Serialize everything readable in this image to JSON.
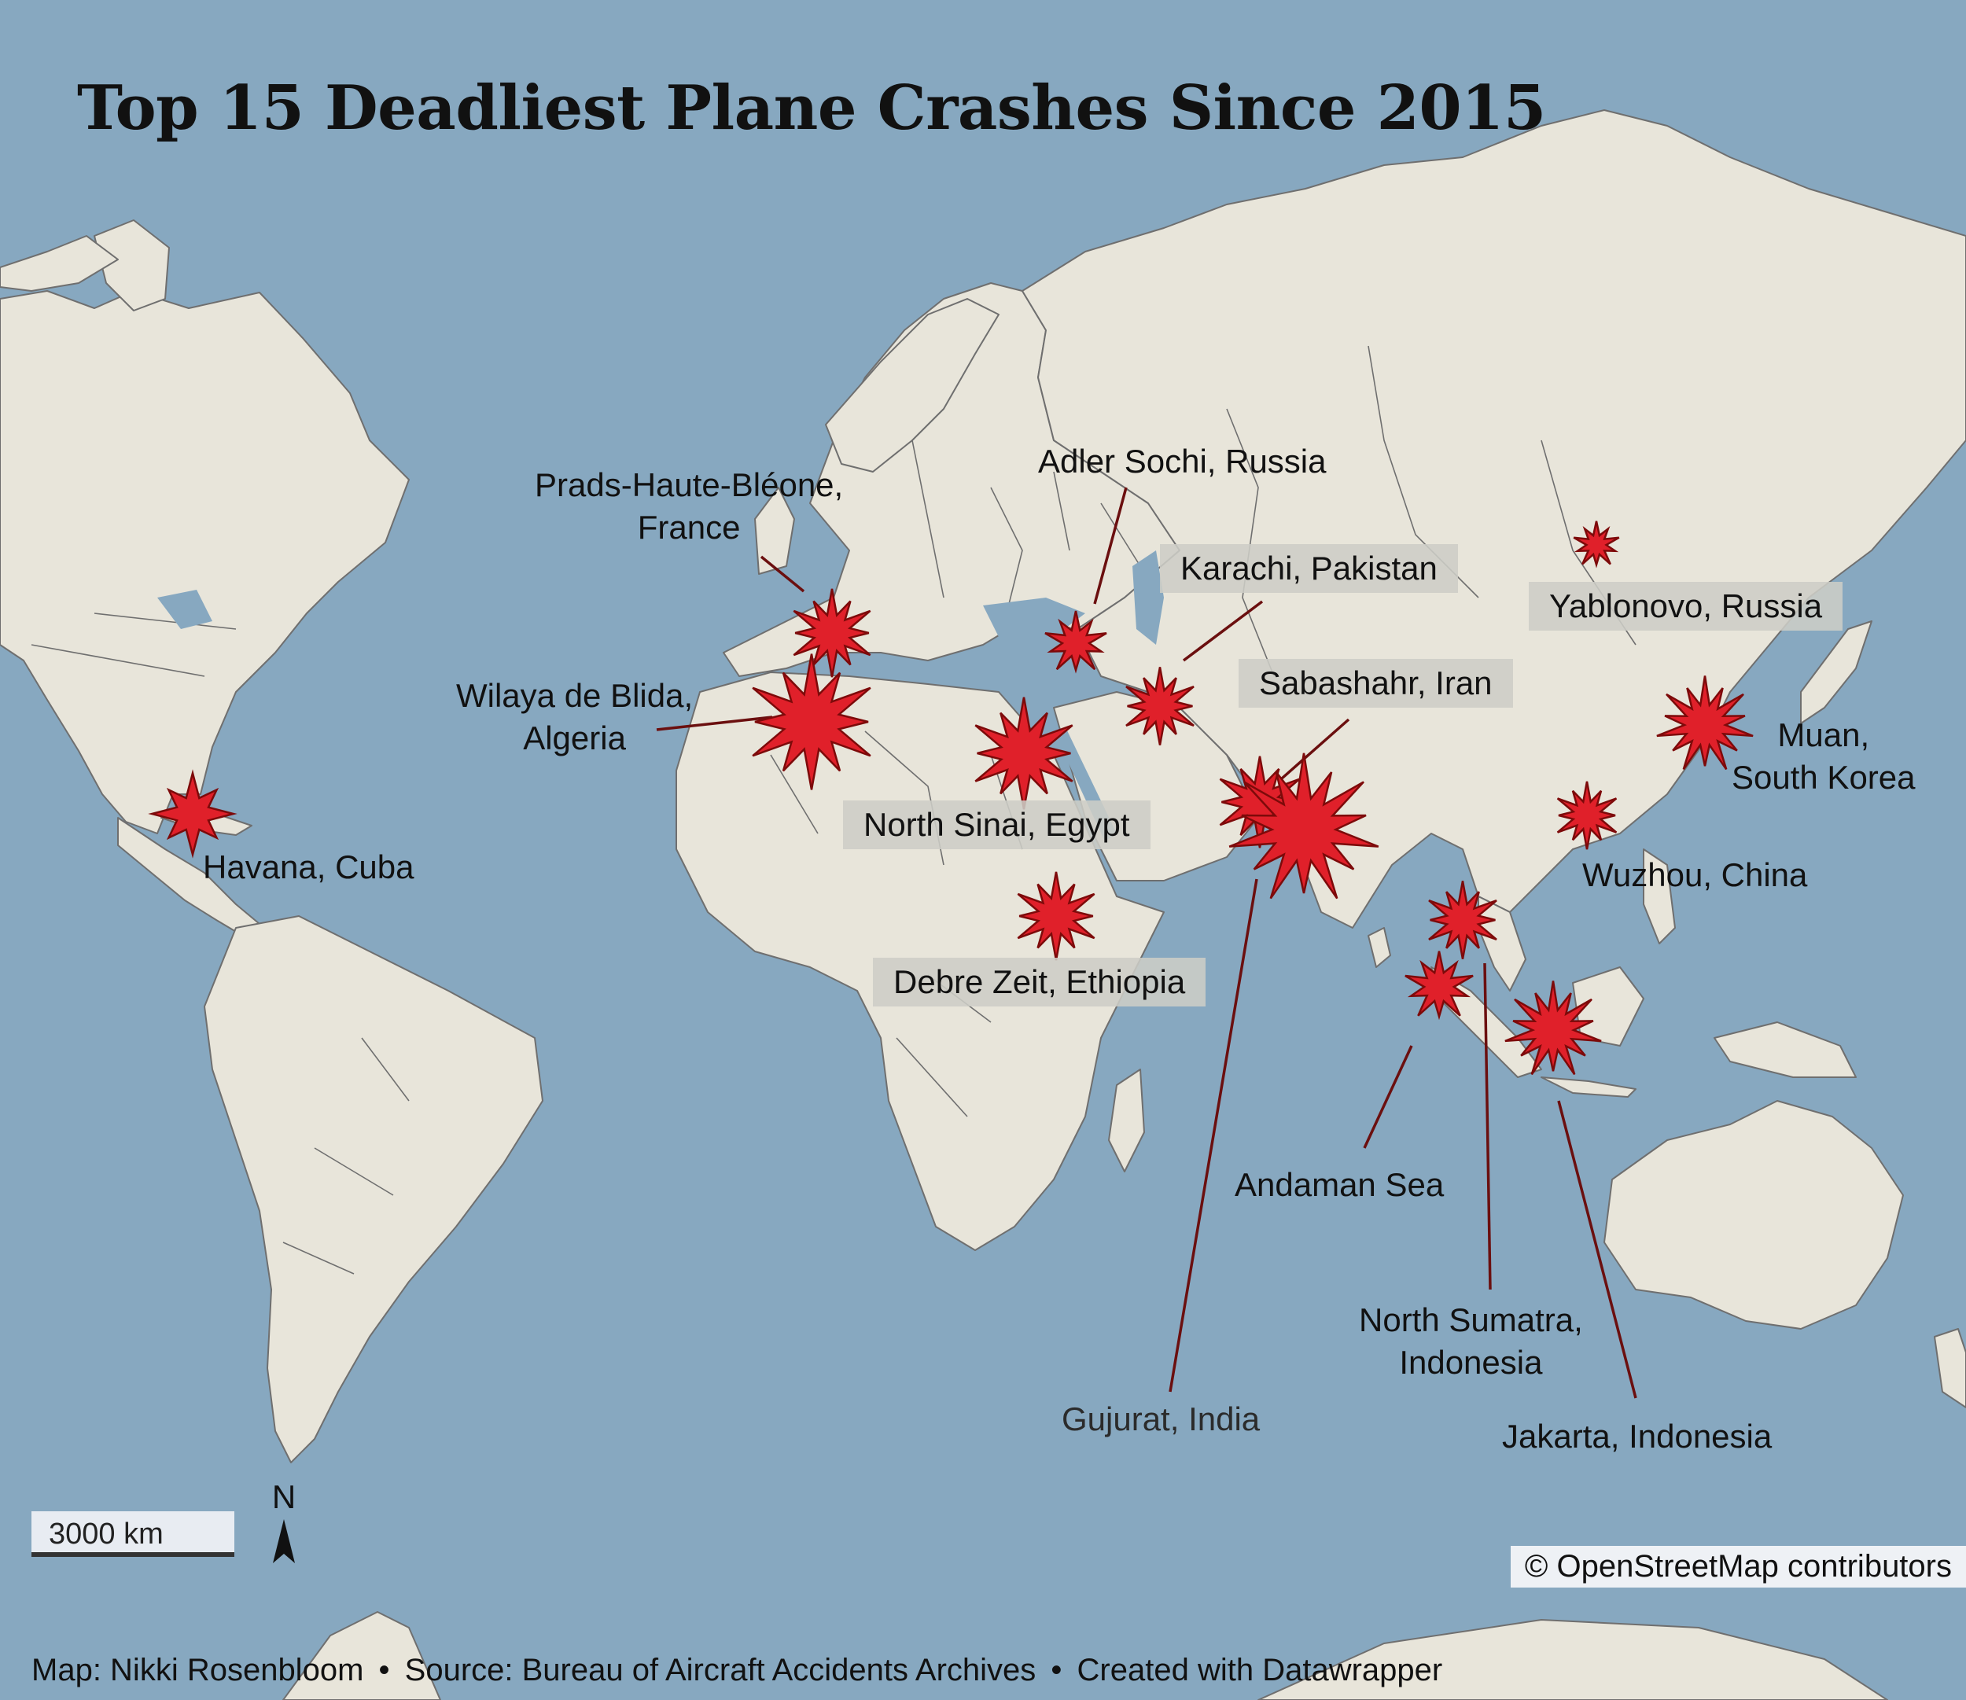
{
  "title": "Top 15 Deadliest Plane Crashes Since 2015",
  "colors": {
    "ocean": "#87a8c0",
    "land": "#e8e5da",
    "border": "#6f6f6f",
    "crash_marker": "#e0202a",
    "leader_line": "#6b0f0f",
    "label_box": "#cdcdc6"
  },
  "crash_sites": [
    {
      "id": "havana",
      "label": "Havana, Cuba"
    },
    {
      "id": "prads",
      "label": "Prads-Haute-Bléone,\nFrance"
    },
    {
      "id": "blida",
      "label": "Wilaya de Blida,\nAlgeria"
    },
    {
      "id": "sinai",
      "label": "North Sinai, Egypt"
    },
    {
      "id": "debre",
      "label": "Debre Zeit, Ethiopia"
    },
    {
      "id": "sochi",
      "label": "Adler Sochi, Russia"
    },
    {
      "id": "karachi",
      "label": "Karachi, Pakistan"
    },
    {
      "id": "sabashahr",
      "label": "Sabashahr, Iran"
    },
    {
      "id": "gujurat",
      "label": "Gujurat, India"
    },
    {
      "id": "yablonovo",
      "label": "Yablonovo, Russia"
    },
    {
      "id": "muan",
      "label": "Muan,\nSouth Korea"
    },
    {
      "id": "wuzhou",
      "label": "Wuzhou, China"
    },
    {
      "id": "andaman",
      "label": "Andaman Sea"
    },
    {
      "id": "sumatra",
      "label": "North Sumatra,\nIndonesia"
    },
    {
      "id": "jakarta",
      "label": "Jakarta, Indonesia"
    }
  ],
  "scale_label": "3000 km",
  "north_label": "N",
  "attribution": "© OpenStreetMap contributors",
  "footer": {
    "map_credit": "Map: Nikki Rosenbloom",
    "source": "Source: Bureau of Aircraft Accidents Archives",
    "tool": "Created with Datawrapper",
    "separator": "•"
  }
}
